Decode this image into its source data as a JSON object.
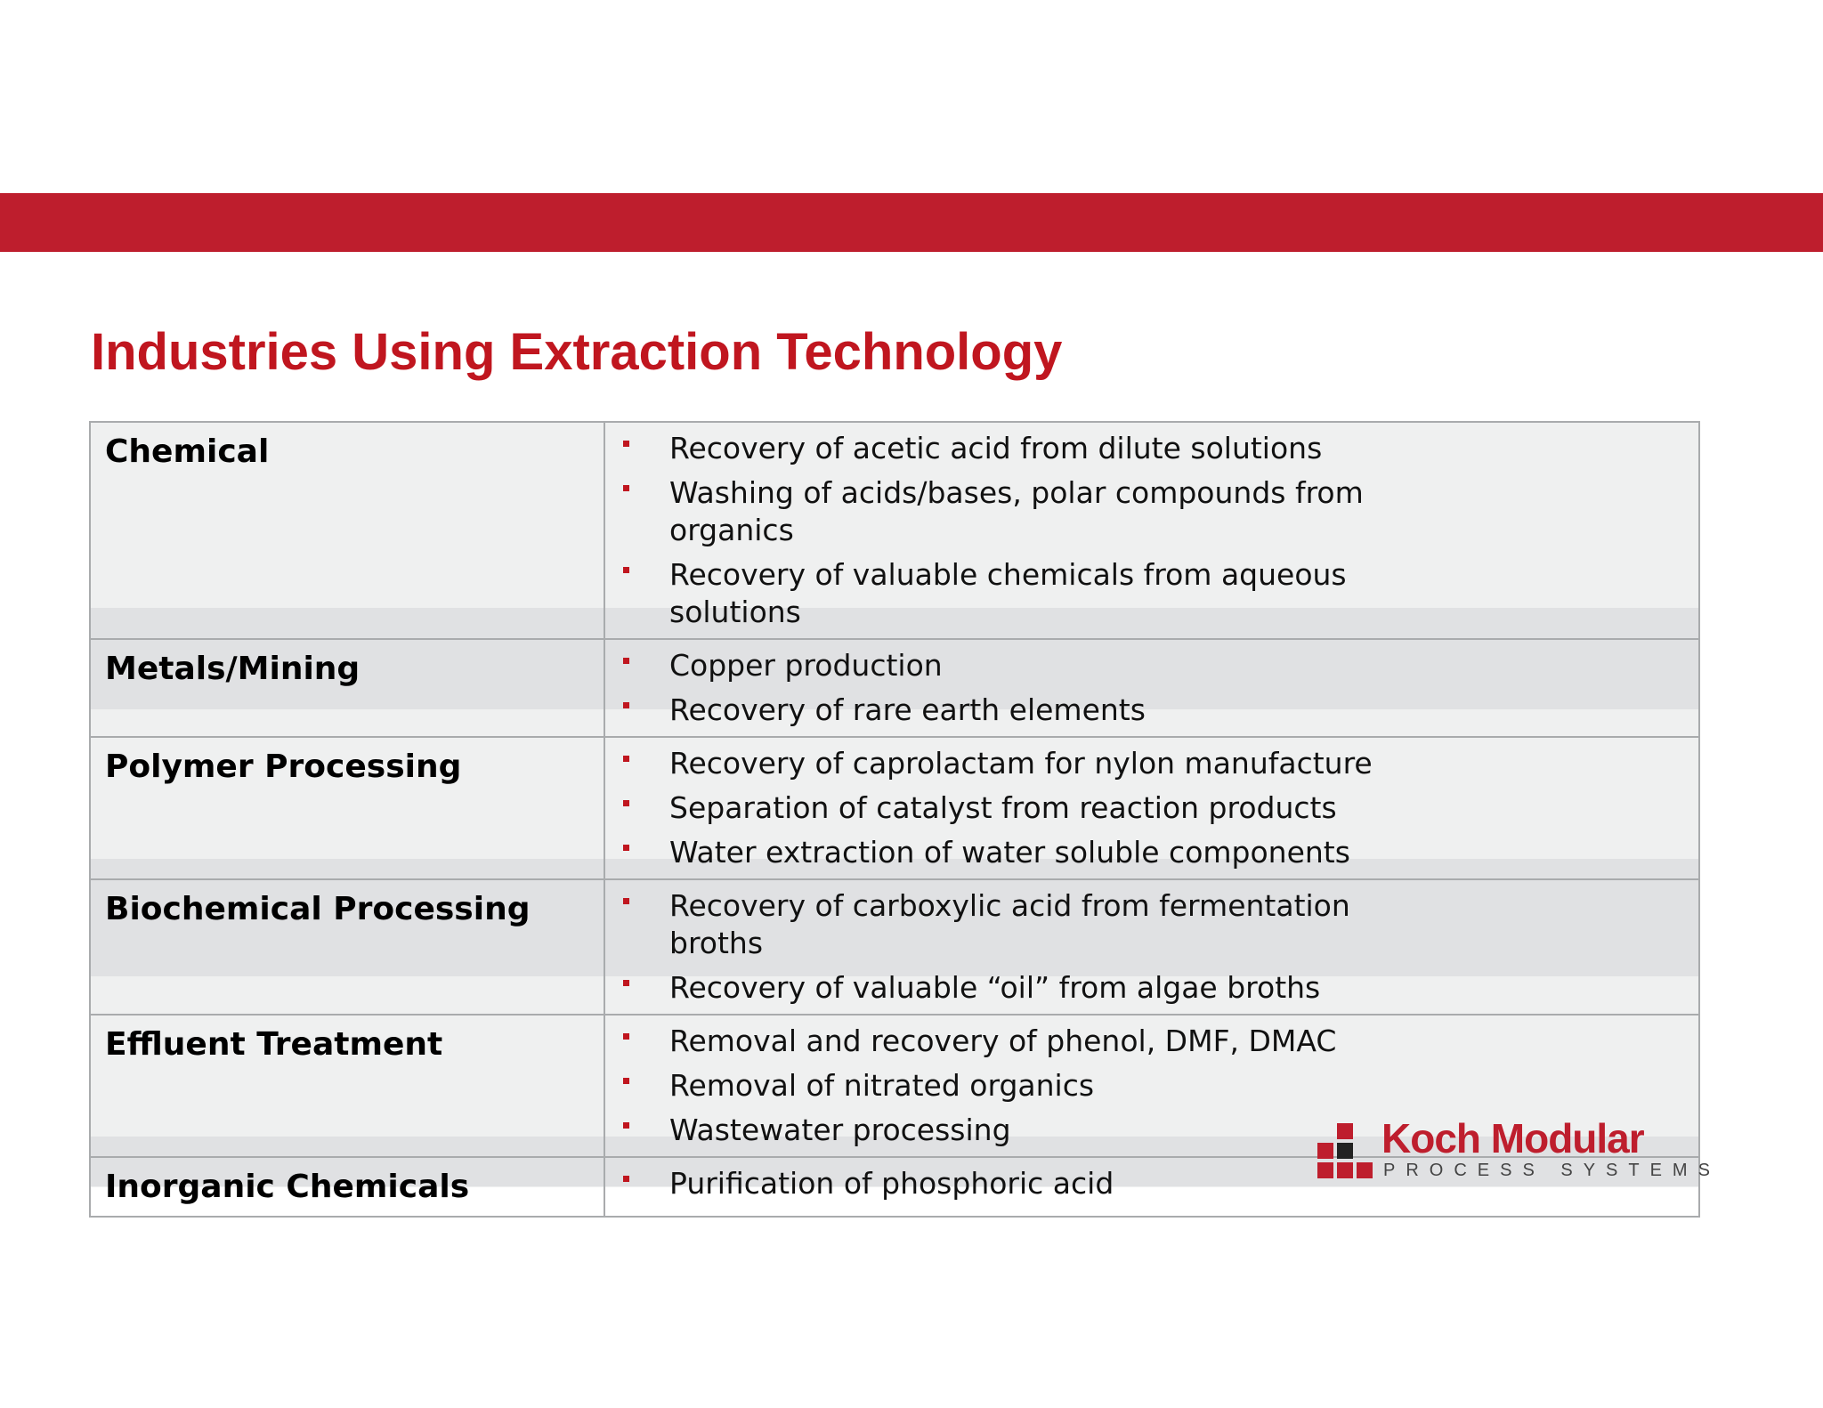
{
  "header": {
    "title": "Industries Using Extraction Technology"
  },
  "table": {
    "rows": [
      {
        "industry": "Chemical",
        "applications": [
          "Recovery of acetic acid from dilute solutions",
          "Washing of acids/bases, polar compounds from organics",
          "Recovery of valuable chemicals from aqueous solutions"
        ]
      },
      {
        "industry": "Metals/Mining",
        "applications": [
          "Copper production",
          "Recovery of rare earth elements"
        ]
      },
      {
        "industry": "Polymer Processing",
        "applications": [
          "Recovery of caprolactam for nylon manufacture",
          "Separation of catalyst from reaction products",
          "Water extraction of water soluble components"
        ]
      },
      {
        "industry": "Biochemical Processing",
        "applications": [
          "Recovery of carboxylic acid from fermentation broths",
          "Recovery of valuable “oil” from algae broths"
        ]
      },
      {
        "industry": "Effluent Treatment",
        "applications": [
          "Removal and recovery of phenol, DMF, DMAC",
          "Removal of nitrated organics",
          "Wastewater processing"
        ]
      },
      {
        "industry": "Inorganic Chemicals",
        "applications": [
          "Purification of phosphoric acid"
        ]
      }
    ]
  },
  "logo": {
    "name": "Koch Modular",
    "tagline": "PROCESS SYSTEMS"
  }
}
